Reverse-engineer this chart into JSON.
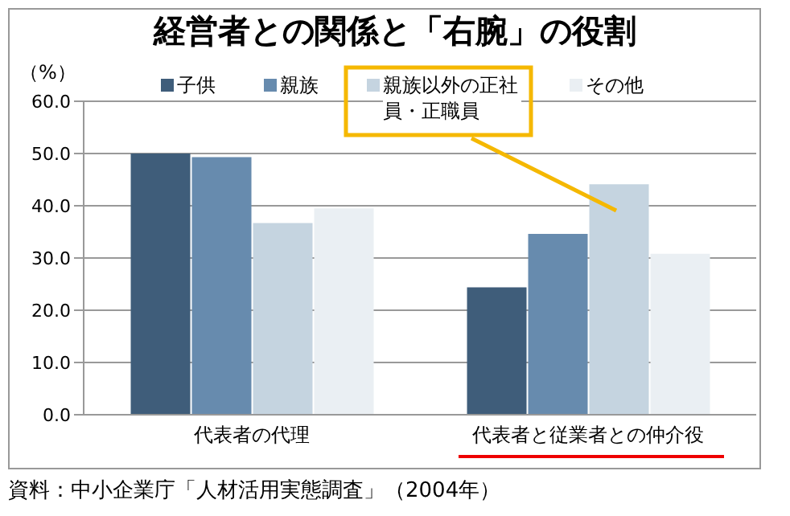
{
  "chart_data": {
    "type": "bar",
    "title": "経営者との関係と「右腕」の役割",
    "ylabel": "（%）",
    "categories": [
      "代表者の代理",
      "代表者と従業者との仲介役"
    ],
    "series": [
      {
        "name": "子供",
        "color": "#3f5d7a",
        "values": [
          50.0,
          24.4
        ]
      },
      {
        "name": "親族",
        "color": "#678bae",
        "values": [
          49.3,
          34.6
        ]
      },
      {
        "name": "親族以外の正社員・正職員",
        "color": "#c5d4e0",
        "values": [
          36.7,
          44.1
        ]
      },
      {
        "name": "その他",
        "color": "#eaeff3",
        "values": [
          39.5,
          30.8
        ]
      }
    ],
    "ylim": [
      0,
      60
    ],
    "yticks": [
      {
        "value": 0,
        "label": "0.0"
      },
      {
        "value": 10,
        "label": "10.0"
      },
      {
        "value": 20,
        "label": "20.0"
      },
      {
        "value": 30,
        "label": "30.0"
      },
      {
        "value": 40,
        "label": "40.0"
      },
      {
        "value": 50,
        "label": "50.0"
      },
      {
        "value": 60,
        "label": "60.0"
      }
    ],
    "grid": "y",
    "legend": "top",
    "annotations": [
      "資料：中小企業庁「人材活用実態調査」（2004年）"
    ]
  }
}
